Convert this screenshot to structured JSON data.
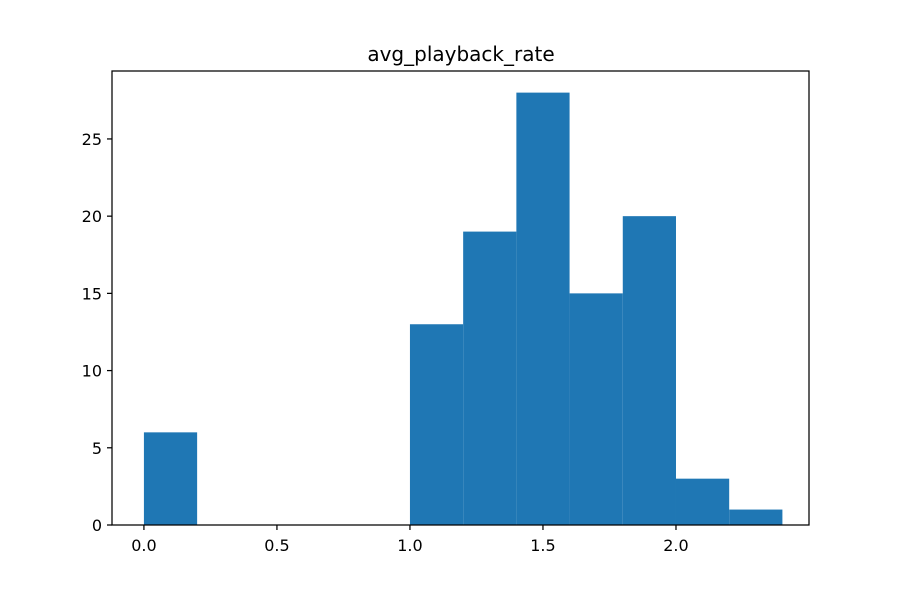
{
  "chart_data": {
    "type": "bar",
    "title": "avg_playback_rate",
    "xlabel": "",
    "ylabel": "",
    "bins": [
      {
        "x0": 0.0,
        "x1": 0.2,
        "count": 6
      },
      {
        "x0": 0.2,
        "x1": 0.4,
        "count": 0
      },
      {
        "x0": 0.4,
        "x1": 0.6,
        "count": 0
      },
      {
        "x0": 0.6,
        "x1": 0.8,
        "count": 0
      },
      {
        "x0": 0.8,
        "x1": 1.0,
        "count": 0
      },
      {
        "x0": 1.0,
        "x1": 1.2,
        "count": 13
      },
      {
        "x0": 1.2,
        "x1": 1.4,
        "count": 19
      },
      {
        "x0": 1.4,
        "x1": 1.6,
        "count": 28
      },
      {
        "x0": 1.6,
        "x1": 1.8,
        "count": 15
      },
      {
        "x0": 1.8,
        "x1": 2.0,
        "count": 20
      },
      {
        "x0": 2.0,
        "x1": 2.2,
        "count": 3
      },
      {
        "x0": 2.2,
        "x1": 2.4,
        "count": 1
      }
    ],
    "xlim": [
      -0.12,
      2.5
    ],
    "ylim": [
      0,
      29.4
    ],
    "xticks": [
      "0.0",
      "0.5",
      "1.0",
      "1.5",
      "2.0"
    ],
    "yticks": [
      "0",
      "5",
      "10",
      "15",
      "20",
      "25"
    ],
    "grid": false,
    "colors": {
      "bar": "#1f77b4",
      "axis": "#000000"
    }
  }
}
